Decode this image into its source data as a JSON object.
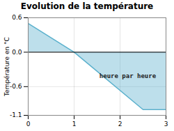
{
  "chart_data": {
    "type": "area",
    "title": "Evolution de la température",
    "ylabel": "Température en °C",
    "x": [
      0,
      1,
      2.5,
      3
    ],
    "values": [
      0.5,
      0.0,
      -1.0,
      -1.0
    ],
    "color": "#5ab0cc",
    "xlim": [
      0,
      3
    ],
    "ylim": [
      -1.1,
      0.6
    ],
    "xticks": [
      0,
      1,
      2,
      3
    ],
    "yticks": [
      -1.1,
      -0.6,
      {
        "value": 0,
        "label": "0.0"
      },
      0.6
    ],
    "grid": true,
    "annotations": [
      {
        "text": "heure par heure",
        "x": 1.55,
        "y": -0.45
      }
    ]
  }
}
